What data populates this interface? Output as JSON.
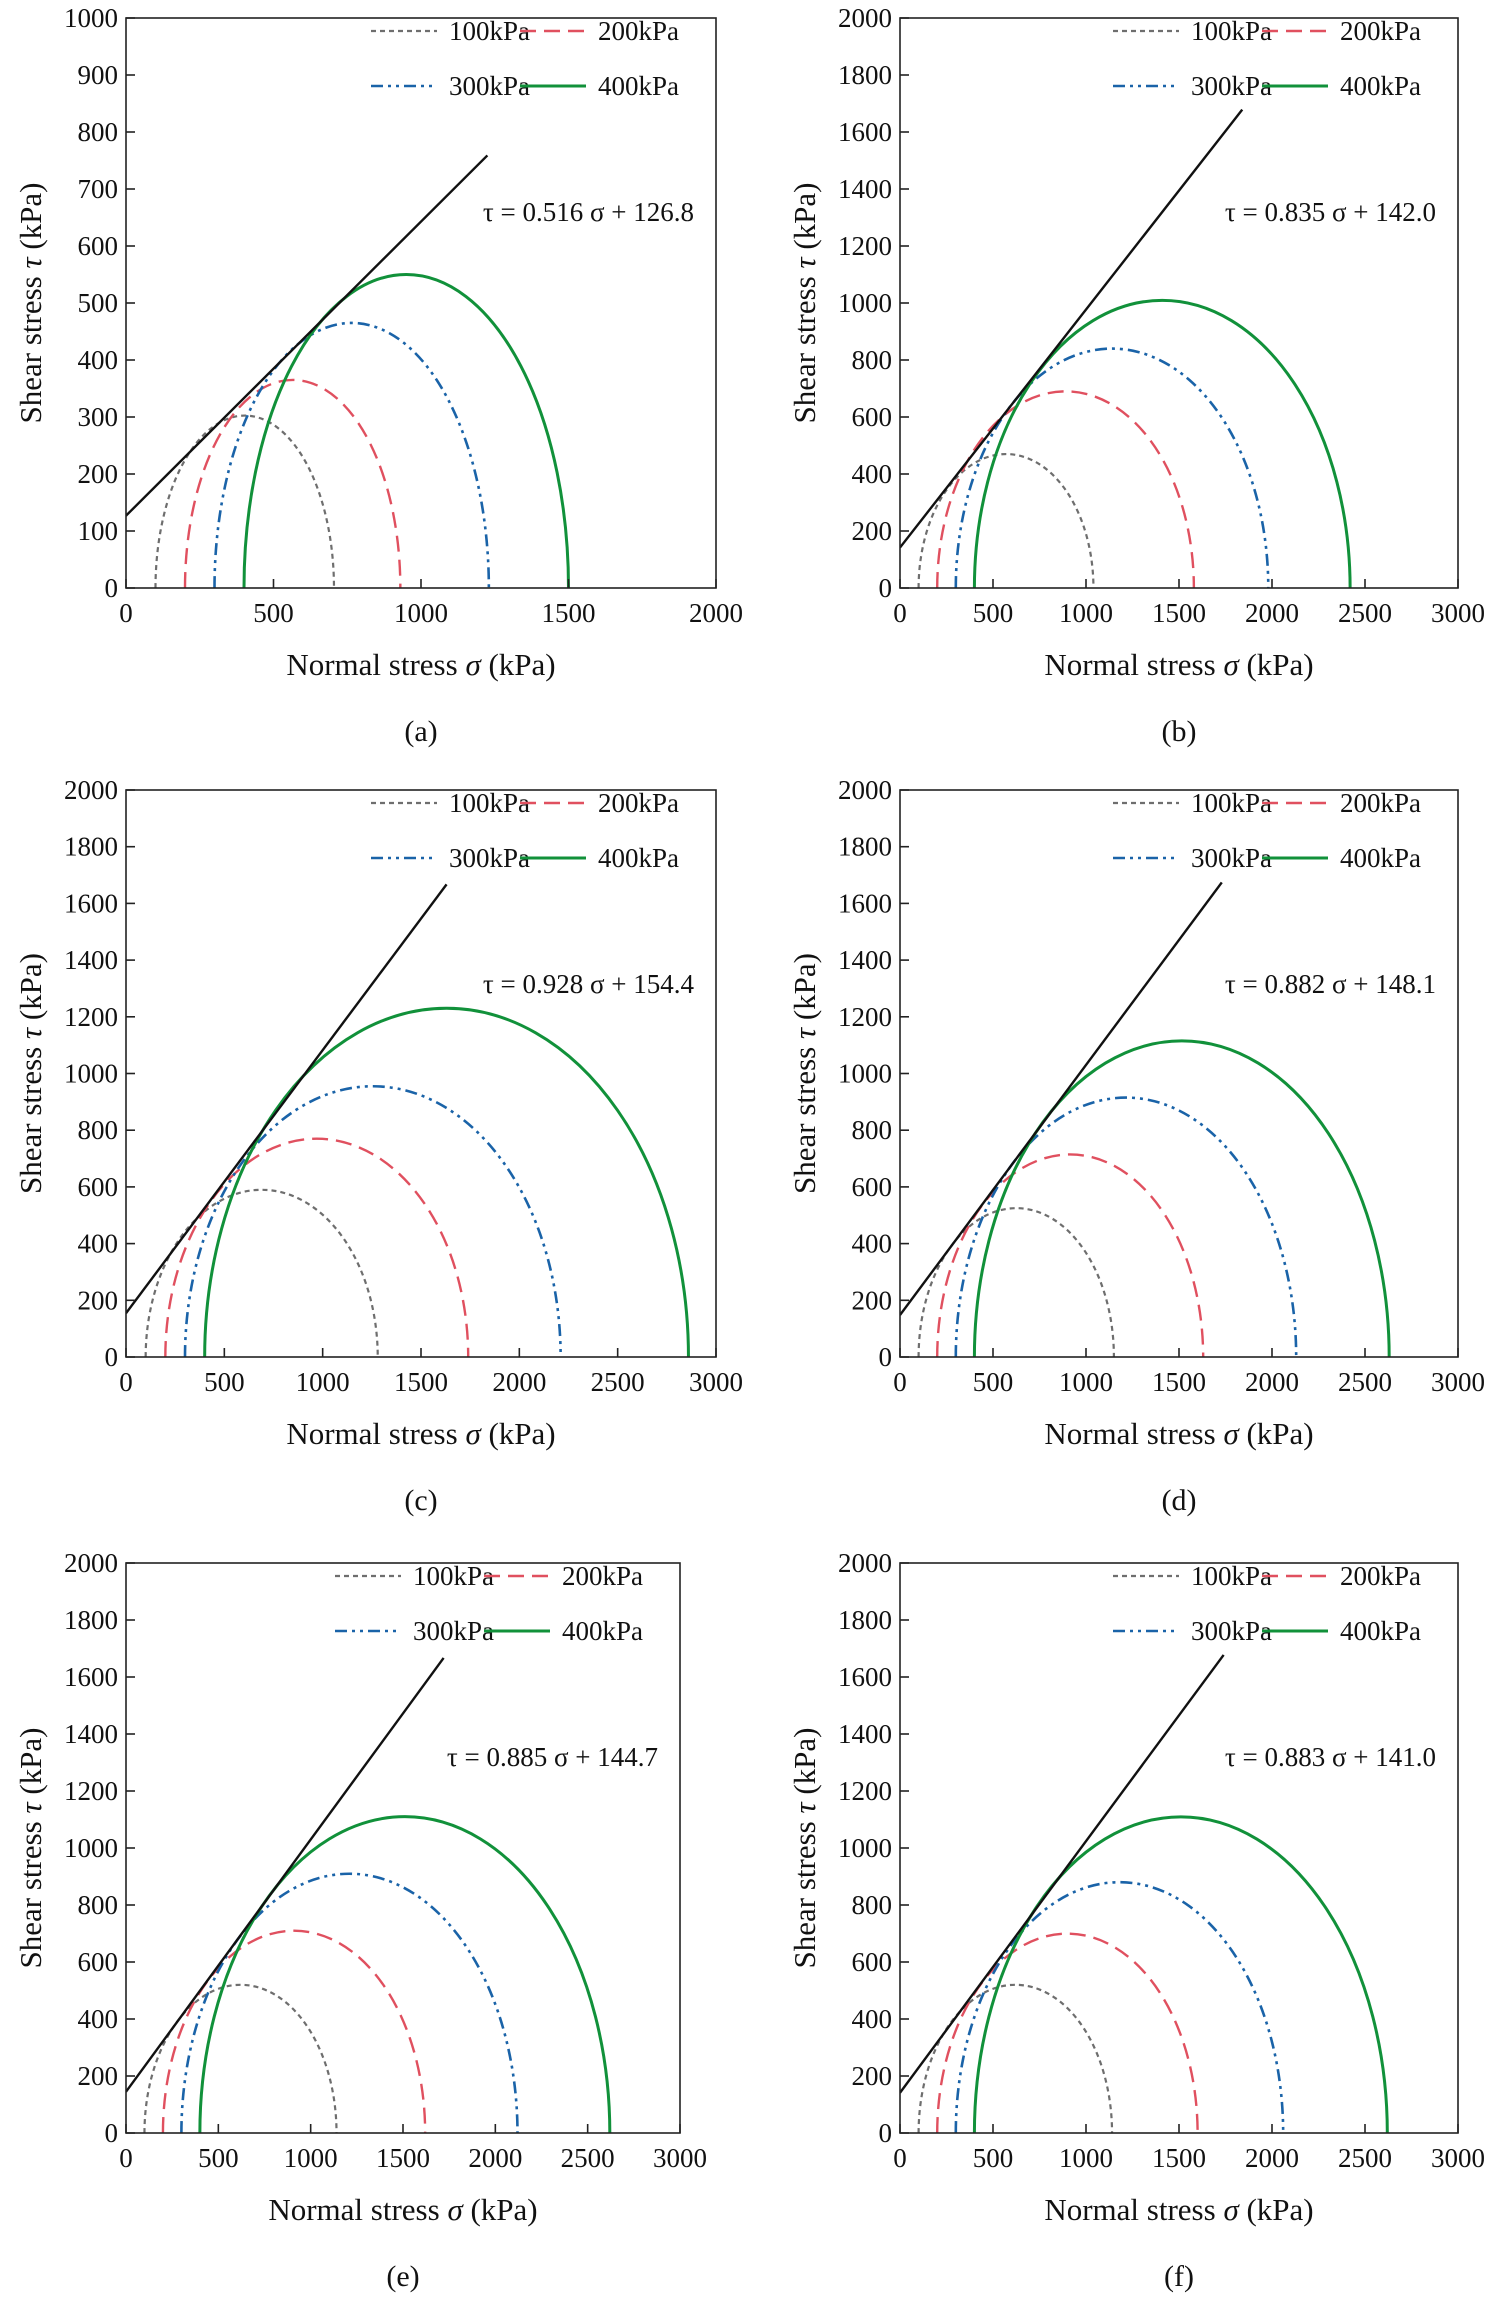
{
  "figure": {
    "series_styles": [
      {
        "name": "100kPa",
        "color": "#6e6e6e",
        "dash": "5,4",
        "width": 2.2
      },
      {
        "name": "200kPa",
        "color": "#e0505f",
        "dash": "16,8",
        "width": 2.4
      },
      {
        "name": "300kPa",
        "color": "#1a63a8",
        "dash": "12,5,3,5,3,5",
        "width": 2.6
      },
      {
        "name": "400kPa",
        "color": "#11913a",
        "dash": "",
        "width": 3.0
      }
    ],
    "envelope_color": "#111111"
  },
  "chart_data": [
    {
      "panel": "(a)",
      "type": "line",
      "xlabel": "Normal stress",
      "xsymbol": "σ",
      "xunit": "(kPa)",
      "ylabel": "Shear stress",
      "ysymbol": "τ",
      "yunit": "(kPa)",
      "xlim": [
        0,
        2000
      ],
      "ylim": [
        0,
        1000
      ],
      "xticks": [
        0,
        500,
        1000,
        1500,
        2000
      ],
      "yticks": [
        0,
        100,
        200,
        300,
        400,
        500,
        600,
        700,
        800,
        900,
        1000
      ],
      "legend": [
        "100kPa",
        "200kPa",
        "300kPa",
        "400kPa"
      ],
      "equation": "τ = 0.516 σ + 126.8",
      "envelope": {
        "slope": 0.516,
        "intercept": 126.8,
        "x_end": 1225
      },
      "circles": [
        {
          "name": "100kPa",
          "sigma3": 100,
          "sigma1": 705
        },
        {
          "name": "200kPa",
          "sigma3": 200,
          "sigma1": 930
        },
        {
          "name": "300kPa",
          "sigma3": 300,
          "sigma1": 1230
        },
        {
          "name": "400kPa",
          "sigma3": 400,
          "sigma1": 1500
        }
      ]
    },
    {
      "panel": "(b)",
      "type": "line",
      "xlabel": "Normal stress",
      "xsymbol": "σ",
      "xunit": "(kPa)",
      "ylabel": "Shear stress",
      "ysymbol": "τ",
      "yunit": "(kPa)",
      "xlim": [
        0,
        3000
      ],
      "ylim": [
        0,
        2000
      ],
      "xticks": [
        0,
        500,
        1000,
        1500,
        2000,
        2500,
        3000
      ],
      "yticks": [
        0,
        200,
        400,
        600,
        800,
        1000,
        1200,
        1400,
        1600,
        1800,
        2000
      ],
      "legend": [
        "100kPa",
        "200kPa",
        "300kPa",
        "400kPa"
      ],
      "equation": "τ = 0.835 σ + 142.0",
      "envelope": {
        "slope": 0.835,
        "intercept": 142.0,
        "x_end": 1840
      },
      "circles": [
        {
          "name": "100kPa",
          "sigma3": 100,
          "sigma1": 1040
        },
        {
          "name": "200kPa",
          "sigma3": 200,
          "sigma1": 1580
        },
        {
          "name": "300kPa",
          "sigma3": 300,
          "sigma1": 1980
        },
        {
          "name": "400kPa",
          "sigma3": 400,
          "sigma1": 2420
        }
      ]
    },
    {
      "panel": "(c)",
      "type": "line",
      "xlabel": "Normal stress",
      "xsymbol": "σ",
      "xunit": "(kPa)",
      "ylabel": "Shear stress",
      "ysymbol": "τ",
      "yunit": "(kPa)",
      "xlim": [
        0,
        3000
      ],
      "ylim": [
        0,
        2000
      ],
      "xticks": [
        0,
        500,
        1000,
        1500,
        2000,
        2500,
        3000
      ],
      "yticks": [
        0,
        200,
        400,
        600,
        800,
        1000,
        1200,
        1400,
        1600,
        1800,
        2000
      ],
      "legend": [
        "100kPa",
        "200kPa",
        "300kPa",
        "400kPa"
      ],
      "equation": "τ = 0.928 σ + 154.4",
      "envelope": {
        "slope": 0.928,
        "intercept": 154.4,
        "x_end": 1630
      },
      "circles": [
        {
          "name": "100kPa",
          "sigma3": 100,
          "sigma1": 1280
        },
        {
          "name": "200kPa",
          "sigma3": 200,
          "sigma1": 1740
        },
        {
          "name": "300kPa",
          "sigma3": 300,
          "sigma1": 2210
        },
        {
          "name": "400kPa",
          "sigma3": 400,
          "sigma1": 2860
        }
      ]
    },
    {
      "panel": "(d)",
      "type": "line",
      "xlabel": "Normal stress",
      "xsymbol": "σ",
      "xunit": "(kPa)",
      "ylabel": "Shear stress",
      "ysymbol": "τ",
      "yunit": "(kPa)",
      "xlim": [
        0,
        3000
      ],
      "ylim": [
        0,
        2000
      ],
      "xticks": [
        0,
        500,
        1000,
        1500,
        2000,
        2500,
        3000
      ],
      "yticks": [
        0,
        200,
        400,
        600,
        800,
        1000,
        1200,
        1400,
        1600,
        1800,
        2000
      ],
      "legend": [
        "100kPa",
        "200kPa",
        "300kPa",
        "400kPa"
      ],
      "equation": "τ = 0.882 σ + 148.1",
      "envelope": {
        "slope": 0.882,
        "intercept": 148.1,
        "x_end": 1730
      },
      "circles": [
        {
          "name": "100kPa",
          "sigma3": 100,
          "sigma1": 1150
        },
        {
          "name": "200kPa",
          "sigma3": 200,
          "sigma1": 1630
        },
        {
          "name": "300kPa",
          "sigma3": 300,
          "sigma1": 2130
        },
        {
          "name": "400kPa",
          "sigma3": 400,
          "sigma1": 2630
        }
      ]
    },
    {
      "panel": "(e)",
      "type": "line",
      "xlabel": "Normal stress",
      "xsymbol": "σ",
      "xunit": "(kPa)",
      "ylabel": "Shear stress",
      "ysymbol": "τ",
      "yunit": "(kPa)",
      "xlim": [
        0,
        3000
      ],
      "ylim": [
        0,
        2000
      ],
      "xticks": [
        0,
        500,
        1000,
        1500,
        2000,
        2500,
        3000
      ],
      "yticks": [
        0,
        200,
        400,
        600,
        800,
        1000,
        1200,
        1400,
        1600,
        1800,
        2000
      ],
      "legend": [
        "100kPa",
        "200kPa",
        "300kPa",
        "400kPa"
      ],
      "equation": "τ = 0.885 σ + 144.7",
      "envelope": {
        "slope": 0.885,
        "intercept": 144.7,
        "x_end": 1720
      },
      "circles": [
        {
          "name": "100kPa",
          "sigma3": 100,
          "sigma1": 1140
        },
        {
          "name": "200kPa",
          "sigma3": 200,
          "sigma1": 1620
        },
        {
          "name": "300kPa",
          "sigma3": 300,
          "sigma1": 2120
        },
        {
          "name": "400kPa",
          "sigma3": 400,
          "sigma1": 2620
        }
      ]
    },
    {
      "panel": "(f)",
      "type": "line",
      "xlabel": "Normal stress",
      "xsymbol": "σ",
      "xunit": "(kPa)",
      "ylabel": "Shear stress",
      "ysymbol": "τ",
      "yunit": "(kPa)",
      "xlim": [
        0,
        3000
      ],
      "ylim": [
        0,
        2000
      ],
      "xticks": [
        0,
        500,
        1000,
        1500,
        2000,
        2500,
        3000
      ],
      "yticks": [
        0,
        200,
        400,
        600,
        800,
        1000,
        1200,
        1400,
        1600,
        1800,
        2000
      ],
      "legend": [
        "100kPa",
        "200kPa",
        "300kPa",
        "400kPa"
      ],
      "equation": "τ = 0.883 σ + 141.0",
      "envelope": {
        "slope": 0.883,
        "intercept": 141.0,
        "x_end": 1740
      },
      "circles": [
        {
          "name": "100kPa",
          "sigma3": 100,
          "sigma1": 1140
        },
        {
          "name": "200kPa",
          "sigma3": 200,
          "sigma1": 1600
        },
        {
          "name": "300kPa",
          "sigma3": 300,
          "sigma1": 2060
        },
        {
          "name": "400kPa",
          "sigma3": 400,
          "sigma1": 2620
        }
      ]
    }
  ]
}
